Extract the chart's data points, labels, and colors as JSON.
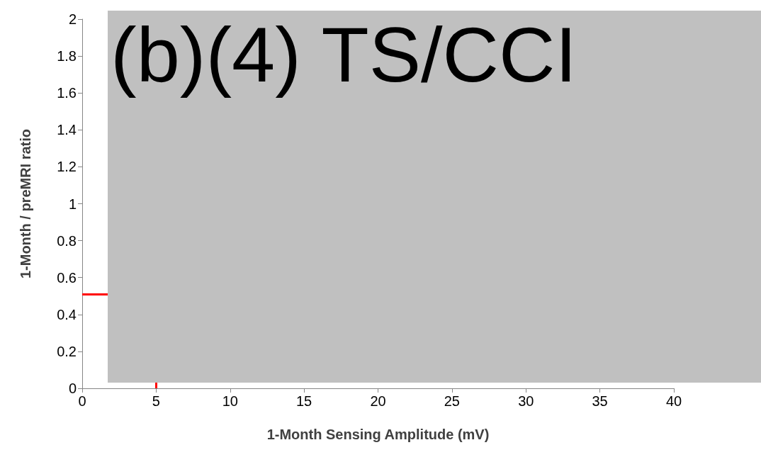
{
  "chart_data": {
    "type": "scatter",
    "xlabel": "1-Month Sensing Amplitude (mV)",
    "ylabel": "1-Month / preMRI ratio",
    "xlim": [
      0,
      40
    ],
    "xticks": [
      0,
      5,
      10,
      15,
      20,
      25,
      30,
      35,
      40
    ],
    "ylim": [
      0,
      2
    ],
    "yticks": [
      0,
      0.2,
      0.4,
      0.6,
      0.8,
      1,
      1.2,
      1.4,
      1.6,
      1.8,
      2
    ],
    "grid": false,
    "ref_lines": [
      {
        "axis": "y",
        "value": 0.51,
        "color": "#ff0000"
      },
      {
        "axis": "x",
        "value": 5,
        "color": "#ff0000"
      }
    ],
    "annotations": [
      "(b)(4) TS/CCI"
    ]
  }
}
